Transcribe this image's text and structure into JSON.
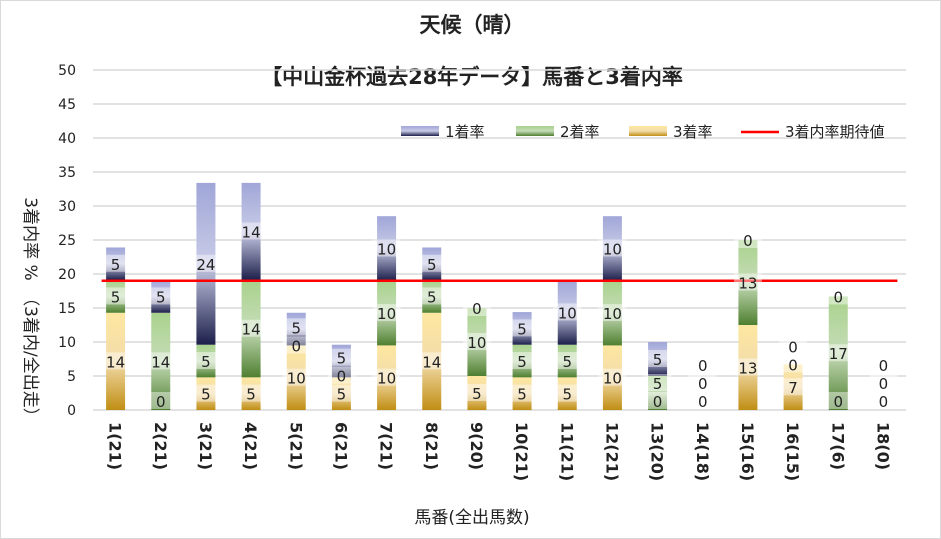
{
  "chart_data": {
    "type": "bar",
    "stacked": true,
    "title": "天候（晴）",
    "subtitle": "【中山金杯過去28年データ】馬番と3着内率",
    "xlabel": "馬番(全出馬数)",
    "ylabel": "3着内率 %　（3着内/全出走）",
    "ylim": [
      0,
      50
    ],
    "yticks": [
      0,
      5,
      10,
      15,
      20,
      25,
      30,
      35,
      40,
      45,
      50
    ],
    "grid": true,
    "legend_position": "top-right",
    "categories": [
      "1(21)",
      "2(21)",
      "3(21)",
      "4(21)",
      "5(21)",
      "6(21)",
      "7(21)",
      "8(21)",
      "9(20)",
      "10(21)",
      "11(21)",
      "12(21)",
      "13(20)",
      "14(18)",
      "15(16)",
      "16(15)",
      "17(6)",
      "18(0)"
    ],
    "series": [
      {
        "name": "3着率",
        "color": "#e0b040",
        "values": [
          14.3,
          0,
          4.8,
          4.8,
          9.5,
          4.8,
          9.5,
          14.3,
          5,
          4.8,
          4.8,
          9.5,
          0,
          0,
          12.5,
          6.7,
          0,
          0
        ]
      },
      {
        "name": "2着率",
        "color": "#70a850",
        "values": [
          4.8,
          14.3,
          4.8,
          14.3,
          0,
          0,
          9.5,
          4.8,
          10,
          4.8,
          4.8,
          9.5,
          5,
          0,
          12.5,
          0,
          16.7,
          0
        ]
      },
      {
        "name": "1着率",
        "color": "#3a4290",
        "values": [
          4.8,
          4.8,
          23.8,
          14.3,
          4.8,
          4.8,
          9.5,
          4.8,
          0,
          4.8,
          9.5,
          9.5,
          5,
          0,
          0,
          0,
          0,
          0
        ]
      }
    ],
    "reference_line": {
      "name": "3着内率期待値",
      "value": 19,
      "color": "#ff0000"
    }
  }
}
